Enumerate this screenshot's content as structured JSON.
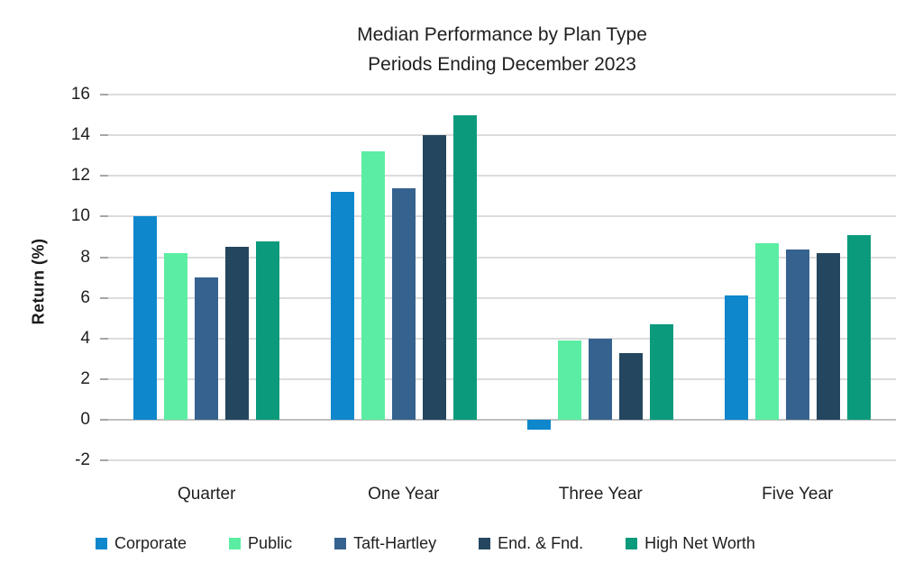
{
  "chart_data": {
    "type": "bar",
    "title": "Median Performance by Plan Type",
    "subtitle": "Periods Ending December 2023",
    "ylabel": "Return (%)",
    "xlabel": "",
    "categories": [
      "Quarter",
      "One Year",
      "Three Year",
      "Five Year"
    ],
    "series": [
      {
        "name": "Corporate",
        "color": "#0E87CD",
        "values": [
          10.0,
          11.2,
          -0.5,
          6.1
        ]
      },
      {
        "name": "Public",
        "color": "#5BEDA3",
        "values": [
          8.2,
          13.2,
          3.9,
          8.7
        ]
      },
      {
        "name": "Taft-Hartley",
        "color": "#36628F",
        "values": [
          7.0,
          11.4,
          4.0,
          8.4
        ]
      },
      {
        "name": "End. & Fnd.",
        "color": "#24465E",
        "values": [
          8.5,
          14.0,
          3.3,
          8.2
        ]
      },
      {
        "name": "High Net Worth",
        "color": "#0B9A7C",
        "values": [
          8.8,
          15.0,
          4.7,
          9.1
        ]
      }
    ],
    "ylim": [
      -2,
      16
    ],
    "ytick_step": 2,
    "ytick_labels": [
      "16",
      "14",
      "12",
      "10",
      "8",
      "6",
      "4",
      "2",
      "0",
      "-2"
    ],
    "grid": true,
    "legend_position": "bottom",
    "gridline_color": "#DCDCDC",
    "zero_line_color": "#C0C0C0",
    "text_color": "#1F1F1F"
  }
}
